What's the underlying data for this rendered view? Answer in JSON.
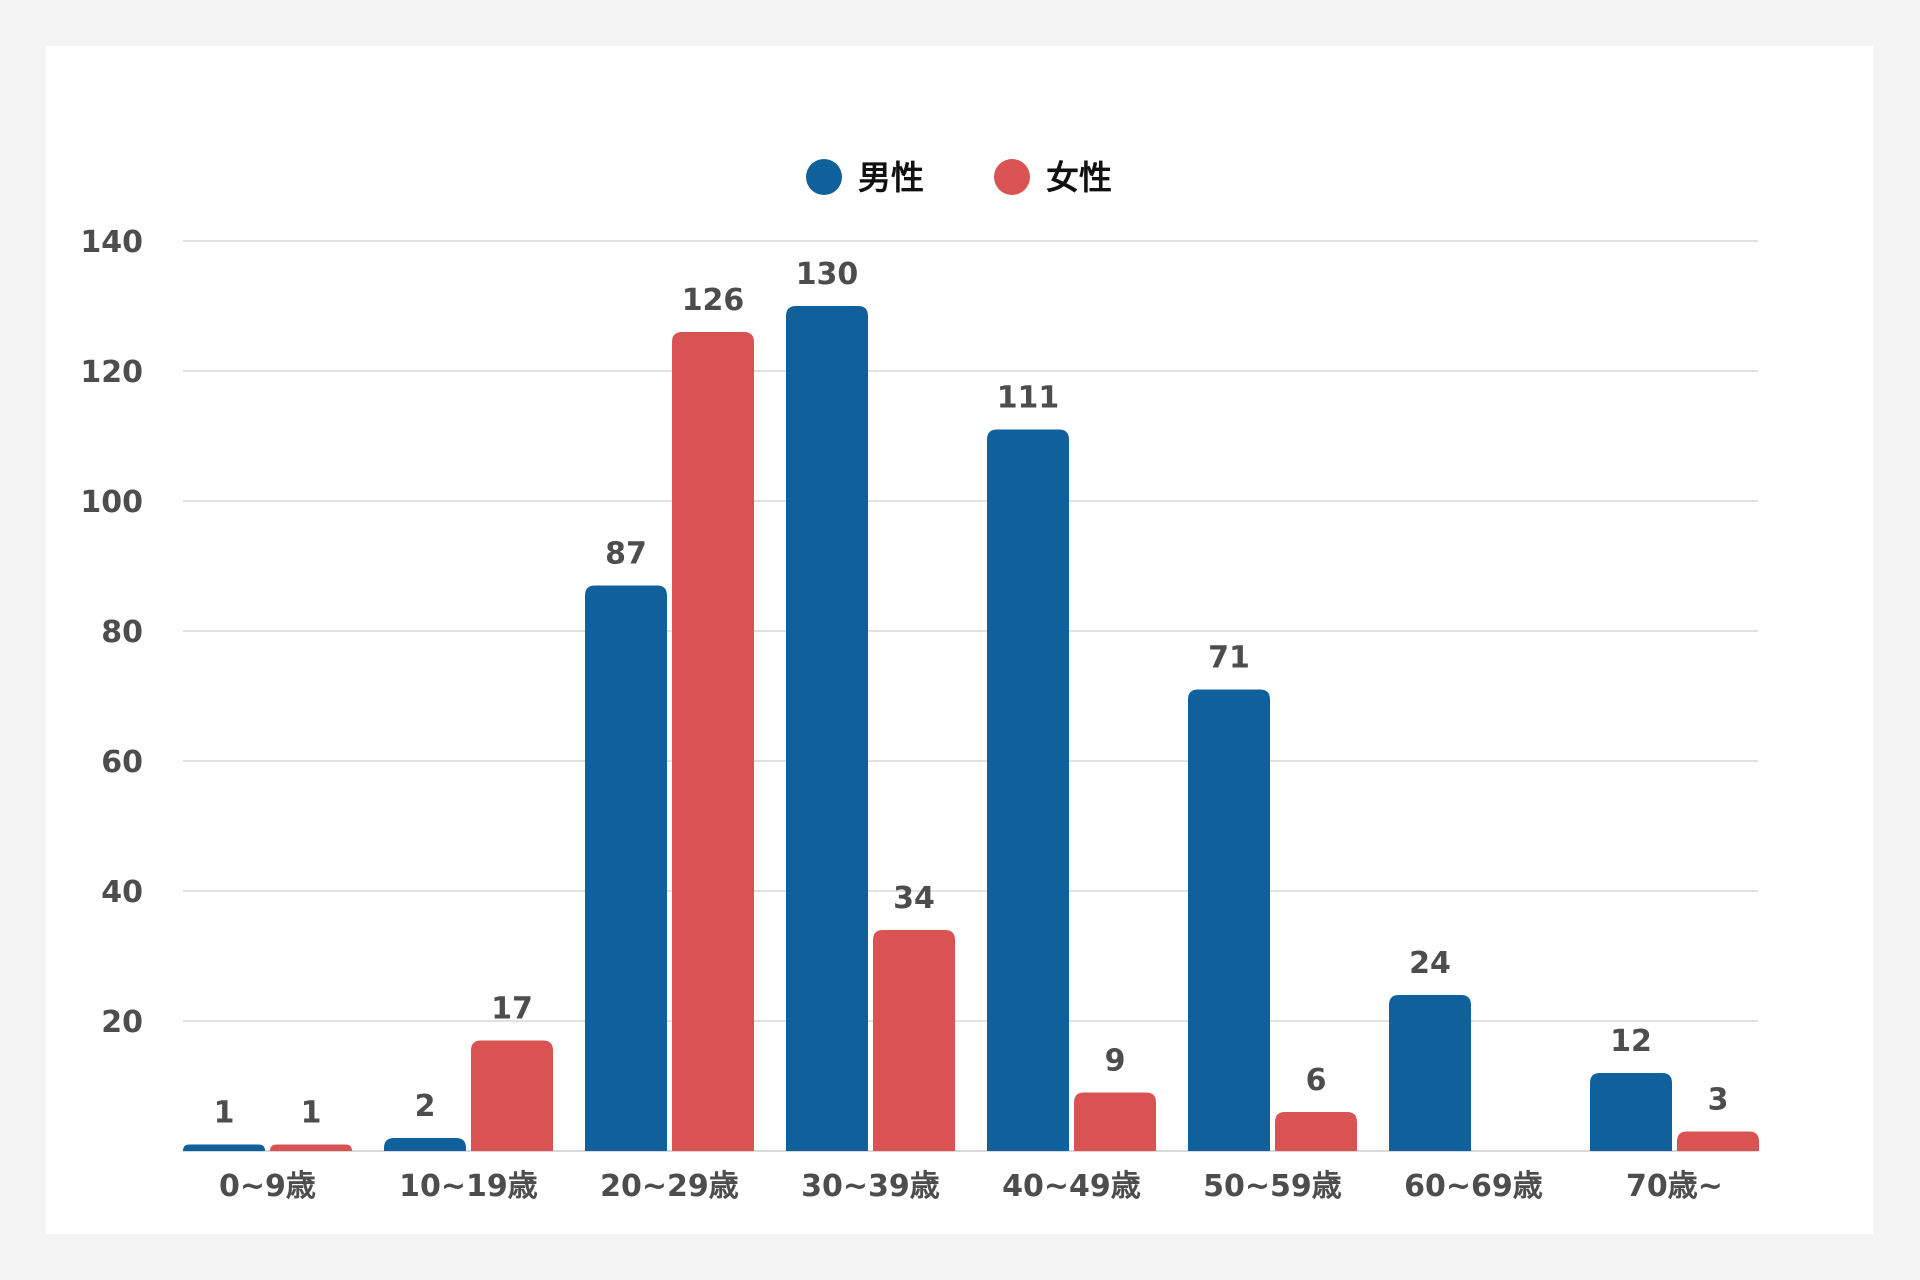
{
  "chart_data": {
    "type": "bar",
    "title": "",
    "xlabel": "",
    "ylabel": "",
    "categories": [
      "0~9歳",
      "10~19歳",
      "20~29歳",
      "30~39歳",
      "40~49歳",
      "50~59歳",
      "60~69歳",
      "70歳~"
    ],
    "series": [
      {
        "name": "男性",
        "color": "#10609c",
        "values": [
          1,
          2,
          87,
          130,
          111,
          71,
          24,
          12
        ]
      },
      {
        "name": "女性",
        "color": "#d95353",
        "values": [
          1,
          17,
          126,
          34,
          9,
          6,
          null,
          3
        ]
      }
    ],
    "ylim": [
      0,
      140
    ],
    "yticks": [
      20,
      40,
      60,
      80,
      100,
      120,
      140
    ],
    "grid": true,
    "legend_position": "top-center",
    "data_labels": true
  },
  "colors": {
    "background": "#f4f4f4",
    "card": "#ffffff",
    "grid": "#d9d9d9",
    "label_text": "#4d4d4d",
    "legend_text": "#111111"
  }
}
